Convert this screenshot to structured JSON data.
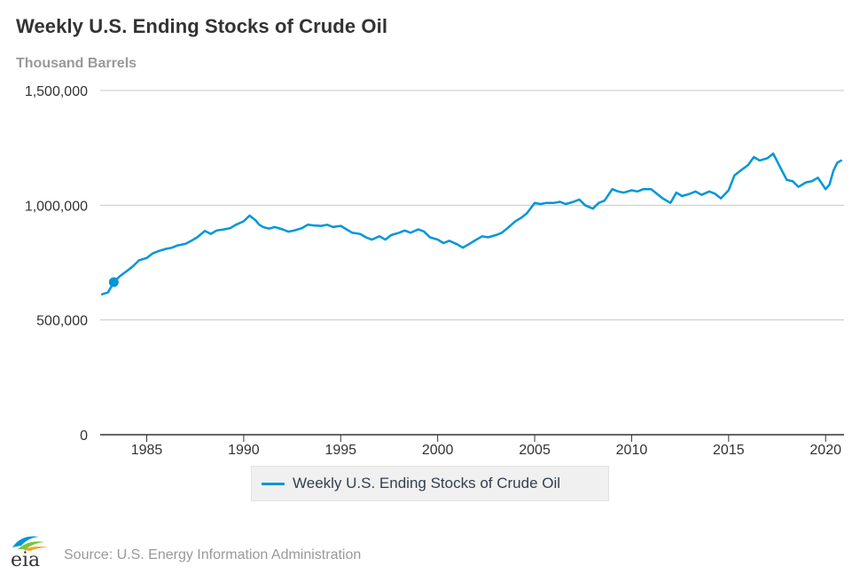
{
  "chart": {
    "title": "Weekly U.S. Ending Stocks of Crude Oil",
    "subtitle": "Thousand Barrels",
    "legend_label": "Weekly U.S. Ending Stocks of Crude Oil"
  },
  "footer": {
    "logo_text": "eia",
    "source": "Source: U.S. Energy Information Administration"
  },
  "chart_data": {
    "type": "line",
    "title": "Weekly U.S. Ending Stocks of Crude Oil",
    "ylabel": "Thousand Barrels",
    "xlabel": "",
    "xlim": [
      1982.6,
      2020.95
    ],
    "ylim": [
      0,
      1500000
    ],
    "x_ticks": [
      1985,
      1990,
      1995,
      2000,
      2005,
      2010,
      2015,
      2020
    ],
    "x_tick_labels": [
      "1985",
      "1990",
      "1995",
      "2000",
      "2005",
      "2010",
      "2015",
      "2020"
    ],
    "y_ticks": [
      0,
      500000,
      1000000,
      1500000
    ],
    "y_tick_labels": [
      "0",
      "500,000",
      "1,000,000",
      "1,500,000"
    ],
    "grid": "horizontal",
    "legend_position": "bottom",
    "colors": {
      "series": "#0096d7",
      "grid": "#c8c8c8",
      "axis": "#333333"
    },
    "highlight_point": {
      "x": 1983.3,
      "y": 665000
    },
    "series": [
      {
        "name": "Weekly U.S. Ending Stocks of Crude Oil",
        "x": [
          1982.7,
          1983.0,
          1983.3,
          1983.6,
          1984.0,
          1984.3,
          1984.6,
          1985.0,
          1985.3,
          1985.6,
          1986.0,
          1986.3,
          1986.6,
          1987.0,
          1987.3,
          1987.6,
          1988.0,
          1988.3,
          1988.6,
          1989.0,
          1989.3,
          1989.6,
          1990.0,
          1990.3,
          1990.6,
          1990.8,
          1991.0,
          1991.3,
          1991.6,
          1992.0,
          1992.3,
          1992.6,
          1993.0,
          1993.3,
          1993.6,
          1994.0,
          1994.3,
          1994.6,
          1995.0,
          1995.3,
          1995.6,
          1996.0,
          1996.3,
          1996.6,
          1997.0,
          1997.3,
          1997.6,
          1998.0,
          1998.3,
          1998.6,
          1999.0,
          1999.3,
          1999.6,
          2000.0,
          2000.3,
          2000.6,
          2001.0,
          2001.3,
          2001.6,
          2002.0,
          2002.3,
          2002.6,
          2003.0,
          2003.3,
          2003.6,
          2004.0,
          2004.3,
          2004.6,
          2005.0,
          2005.3,
          2005.6,
          2006.0,
          2006.3,
          2006.6,
          2007.0,
          2007.3,
          2007.6,
          2008.0,
          2008.3,
          2008.6,
          2009.0,
          2009.3,
          2009.6,
          2010.0,
          2010.3,
          2010.6,
          2011.0,
          2011.3,
          2011.6,
          2012.0,
          2012.3,
          2012.6,
          2013.0,
          2013.3,
          2013.6,
          2014.0,
          2014.3,
          2014.6,
          2015.0,
          2015.3,
          2015.6,
          2016.0,
          2016.3,
          2016.6,
          2017.0,
          2017.3,
          2017.6,
          2018.0,
          2018.3,
          2018.6,
          2019.0,
          2019.3,
          2019.6,
          2020.0,
          2020.2,
          2020.4,
          2020.6,
          2020.8
        ],
        "values": [
          612000,
          620000,
          665000,
          690000,
          715000,
          735000,
          760000,
          770000,
          790000,
          800000,
          810000,
          815000,
          825000,
          832000,
          845000,
          860000,
          888000,
          875000,
          890000,
          895000,
          900000,
          915000,
          930000,
          955000,
          935000,
          915000,
          905000,
          898000,
          905000,
          895000,
          885000,
          890000,
          900000,
          915000,
          912000,
          910000,
          915000,
          905000,
          910000,
          895000,
          880000,
          875000,
          860000,
          850000,
          865000,
          850000,
          870000,
          880000,
          890000,
          880000,
          895000,
          885000,
          860000,
          850000,
          835000,
          845000,
          830000,
          815000,
          830000,
          850000,
          865000,
          860000,
          870000,
          880000,
          900000,
          930000,
          945000,
          965000,
          1010000,
          1005000,
          1010000,
          1010000,
          1015000,
          1005000,
          1015000,
          1025000,
          1000000,
          985000,
          1010000,
          1020000,
          1070000,
          1060000,
          1055000,
          1065000,
          1060000,
          1070000,
          1070000,
          1050000,
          1030000,
          1010000,
          1055000,
          1040000,
          1050000,
          1060000,
          1045000,
          1060000,
          1050000,
          1030000,
          1065000,
          1130000,
          1150000,
          1175000,
          1210000,
          1195000,
          1205000,
          1225000,
          1175000,
          1110000,
          1105000,
          1080000,
          1100000,
          1105000,
          1120000,
          1070000,
          1090000,
          1150000,
          1185000,
          1195000
        ]
      }
    ]
  }
}
